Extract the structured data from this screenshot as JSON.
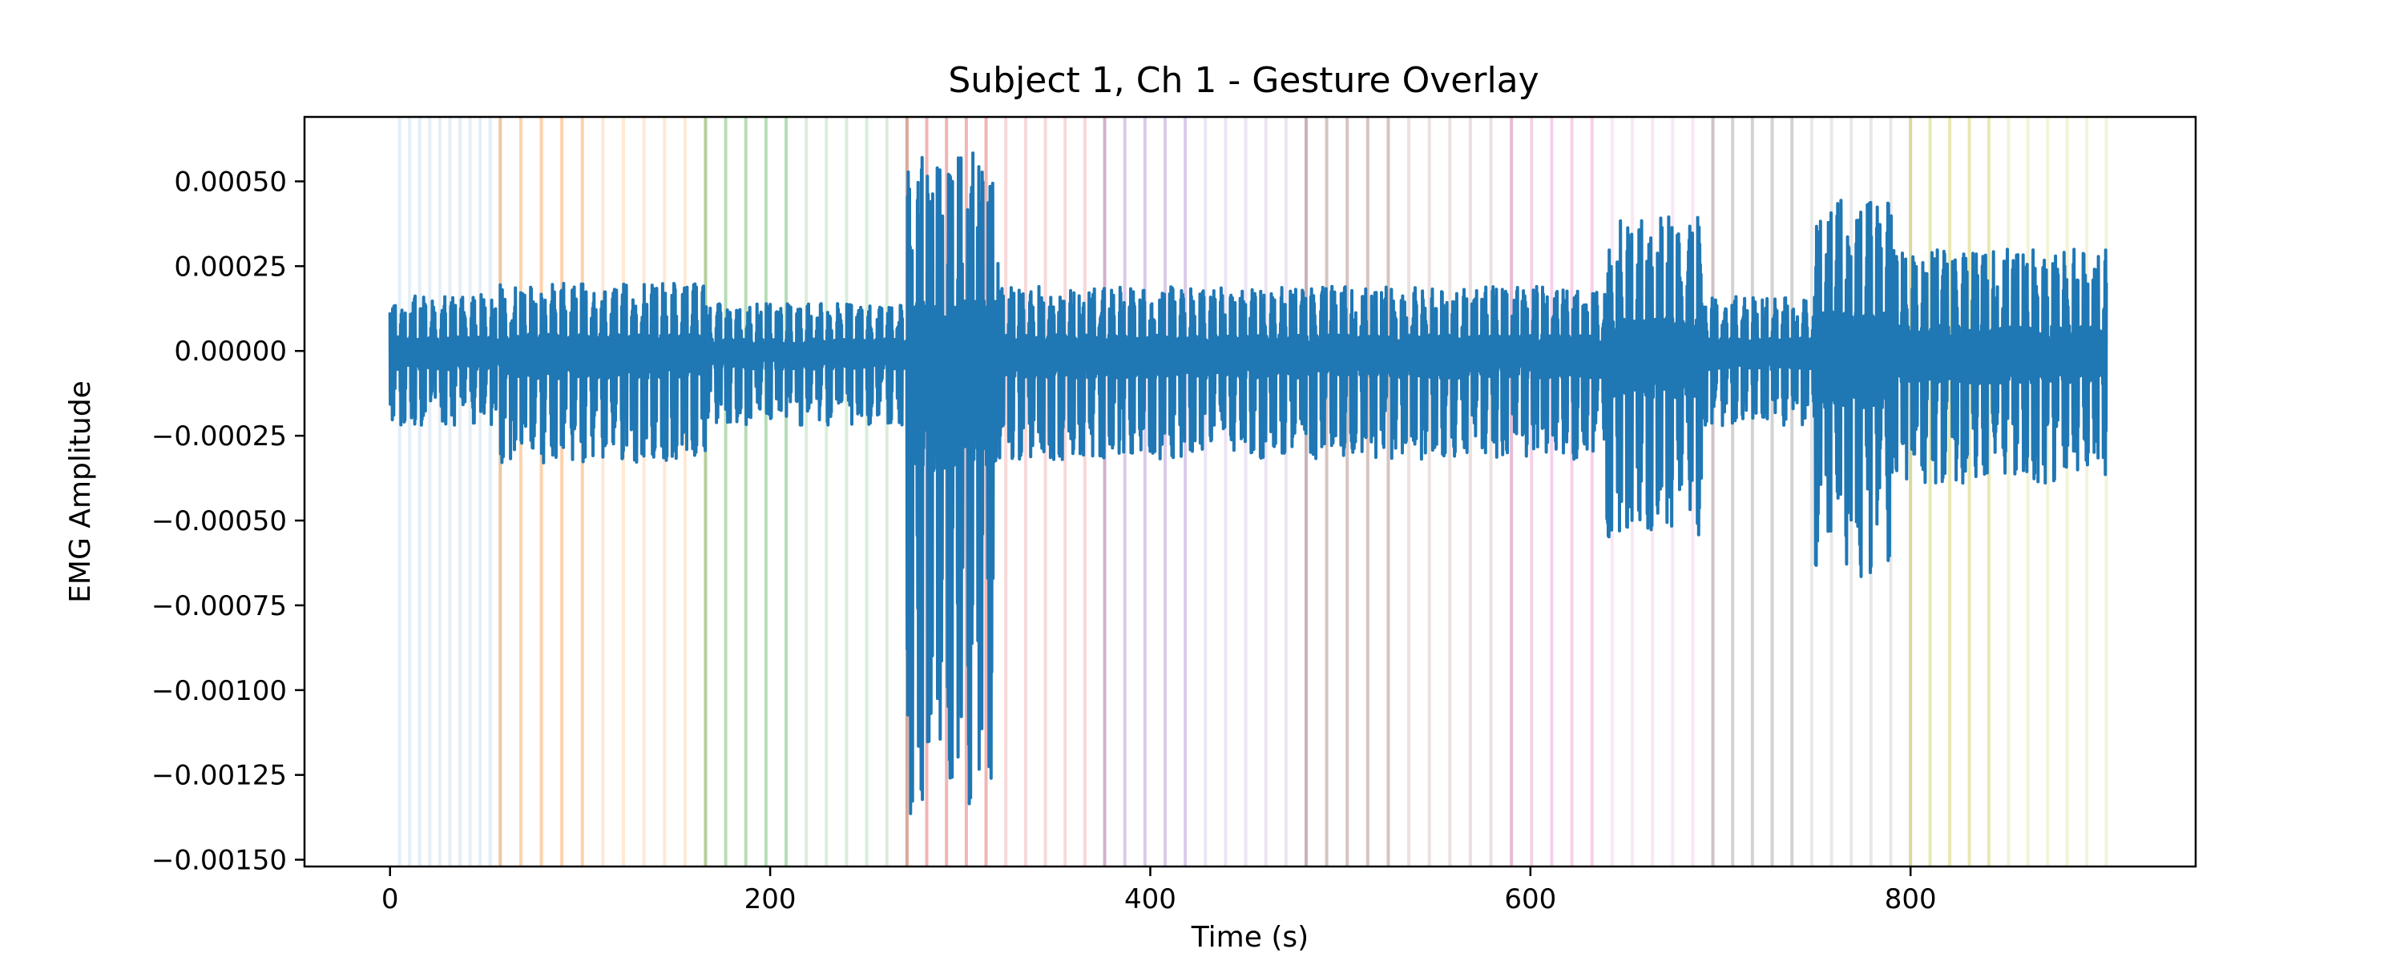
{
  "chart_data": {
    "type": "line",
    "title": "Subject 1, Ch 1 - Gesture Overlay",
    "xlabel": "Time (s)",
    "ylabel": "EMG Amplitude",
    "xlim": [
      -45,
      950
    ],
    "ylim": [
      -0.00152,
      0.00069
    ],
    "xticks": [
      0,
      200,
      400,
      600,
      800
    ],
    "yticks": [
      -0.0015,
      -0.00125,
      -0.001,
      -0.00075,
      -0.0005,
      -0.00025,
      0.0,
      0.00025,
      0.0005
    ],
    "ytick_labels": [
      "−0.00150",
      "−0.00125",
      "−0.00100",
      "−0.00075",
      "−0.00050",
      "−0.00025",
      "0.00000",
      "0.00025",
      "0.00050"
    ],
    "grid": false,
    "legend": "none",
    "colors": {
      "signal": "#1f77b4",
      "gesture_palette": [
        "#1f77b4",
        "#ff7f0e",
        "#2ca02c",
        "#d62728",
        "#9467bd",
        "#8c564b",
        "#e377c2",
        "#7f7f7f",
        "#bcbd22"
      ]
    },
    "signal": {
      "x_range": [
        0,
        903
      ],
      "baseline_amplitude": 0.00014,
      "active_segments": [
        {
          "x": [
            0,
            58
          ],
          "peak_pos": 0.00017,
          "peak_neg": -0.00022
        },
        {
          "x": [
            58,
            166
          ],
          "peak_pos": 0.0002,
          "peak_neg": -0.00033
        },
        {
          "x": [
            166,
            272
          ],
          "peak_pos": 0.00014,
          "peak_neg": -0.00022
        },
        {
          "x": [
            272,
            320
          ],
          "peak_pos": 0.00059,
          "peak_neg": -0.00142
        },
        {
          "x": [
            320,
            640
          ],
          "peak_pos": 0.00019,
          "peak_neg": -0.00032
        },
        {
          "x": [
            640,
            690
          ],
          "peak_pos": 0.0004,
          "peak_neg": -0.00055
        },
        {
          "x": [
            690,
            750
          ],
          "peak_pos": 0.00016,
          "peak_neg": -0.00022
        },
        {
          "x": [
            750,
            790
          ],
          "peak_pos": 0.00046,
          "peak_neg": -0.00067
        },
        {
          "x": [
            790,
            903
          ],
          "peak_pos": 0.0003,
          "peak_neg": -0.00039
        }
      ]
    },
    "gesture_bands": [
      {
        "gesture": 1,
        "start": 5,
        "end": 58,
        "color": "#1f77b4"
      },
      {
        "gesture": 2,
        "start": 58,
        "end": 166,
        "color": "#ff7f0e"
      },
      {
        "gesture": 3,
        "start": 166,
        "end": 272,
        "color": "#2ca02c"
      },
      {
        "gesture": 4,
        "start": 272,
        "end": 376,
        "color": "#d62728"
      },
      {
        "gesture": 5,
        "start": 376,
        "end": 482,
        "color": "#9467bd"
      },
      {
        "gesture": 6,
        "start": 482,
        "end": 590,
        "color": "#8c564b"
      },
      {
        "gesture": 7,
        "start": 590,
        "end": 696,
        "color": "#e377c2"
      },
      {
        "gesture": 8,
        "start": 696,
        "end": 800,
        "color": "#7f7f7f"
      },
      {
        "gesture": 9,
        "start": 800,
        "end": 903,
        "color": "#bcbd22"
      }
    ]
  }
}
